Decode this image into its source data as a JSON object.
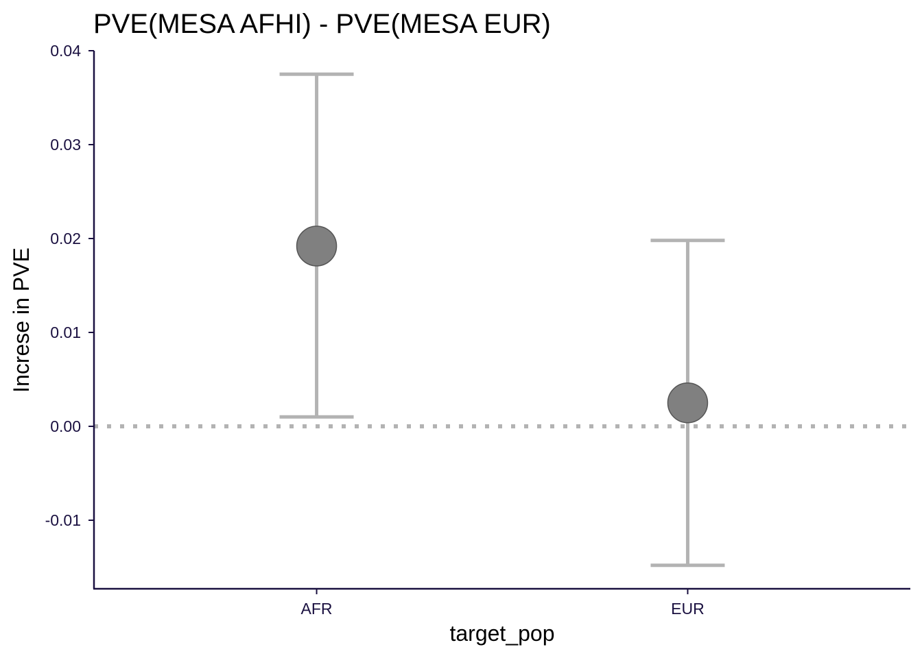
{
  "chart_data": {
    "type": "scatter",
    "title": "PVE(MESA AFHI) - PVE(MESA EUR)",
    "xlabel": "target_pop",
    "ylabel": "Increse in PVE",
    "categories": [
      "AFR",
      "EUR"
    ],
    "estimates": [
      0.0192,
      0.0025
    ],
    "ci_lower": [
      0.001,
      -0.0148
    ],
    "ci_upper": [
      0.0375,
      0.0198
    ],
    "ylim": [
      -0.0173,
      0.04
    ],
    "yticks": [
      -0.01,
      0.0,
      0.01,
      0.02,
      0.03,
      0.04
    ],
    "ytick_labels": [
      "-0.01",
      "0.00",
      "0.01",
      "0.02",
      "0.03",
      "0.04"
    ],
    "reference_line": 0,
    "grid": false,
    "colors": {
      "axis": "#1a1040",
      "errorbar": "#b3b3b3",
      "point_fill": "#808080",
      "point_stroke": "#555555",
      "reference_line": "#b3b3b3"
    }
  }
}
